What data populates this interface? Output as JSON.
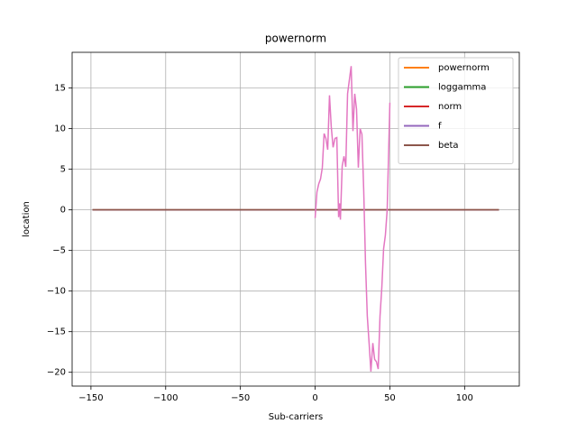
{
  "chart_data": {
    "type": "line",
    "title": "powernorm",
    "xlabel": "Sub-carriers",
    "ylabel": "location",
    "xlim": [
      -162.6,
      136.6
    ],
    "ylim": [
      -21.7,
      19.4
    ],
    "xticks": [
      {
        "value": -150,
        "label": "−150"
      },
      {
        "value": -100,
        "label": "−100"
      },
      {
        "value": -50,
        "label": "−50"
      },
      0,
      50,
      100
    ],
    "yticks": [
      {
        "value": -20,
        "label": "−20"
      },
      {
        "value": -15,
        "label": "−15"
      },
      {
        "value": -10,
        "label": "−10"
      },
      {
        "value": -5,
        "label": "−5"
      },
      0,
      5,
      10,
      15
    ],
    "grid": true,
    "legend": "upper right",
    "series": [
      {
        "name": "powernorm",
        "color": "#ff7f0e",
        "x": [
          -149,
          123
        ],
        "values": [
          0,
          0
        ]
      },
      {
        "name": "loggamma",
        "color": "#2ca02c",
        "x": [
          -149,
          123
        ],
        "values": [
          0,
          0
        ]
      },
      {
        "name": "norm",
        "color": "#d62728",
        "x": [
          -149,
          123
        ],
        "values": [
          0,
          0
        ]
      },
      {
        "name": "f",
        "color": "#9467bd",
        "x": [
          -149,
          123
        ],
        "values": [
          0,
          0
        ]
      },
      {
        "name": "beta",
        "color": "#8c564b",
        "x": [
          -149,
          123
        ],
        "values": [
          0,
          0
        ]
      },
      {
        "color": "#e377c2",
        "x": [
          0,
          1.2,
          2.4,
          3.6,
          4.8,
          6,
          7.2,
          8.4,
          9.6,
          10.8,
          12,
          13.3,
          14.5,
          15.7,
          16.3,
          16.9,
          18.1,
          19.3,
          20.5,
          21.7,
          22.9,
          24.1,
          25.3,
          26.5,
          27.7,
          28.9,
          30.1,
          31.3,
          32.5,
          33.7,
          34.9,
          36.1,
          37.3,
          38.6,
          39.8,
          41,
          42.2,
          43.4,
          44.6,
          45.8,
          47,
          48.2,
          50
        ],
        "values": [
          -1,
          2.2,
          3.2,
          3.8,
          5.2,
          9.4,
          8.8,
          7.4,
          14.1,
          10.2,
          7.7,
          8.8,
          8.9,
          -0.9,
          0.8,
          -1.2,
          5.4,
          6.6,
          5.3,
          14.3,
          16,
          17.7,
          9.7,
          14.3,
          12.4,
          5.2,
          10,
          9.3,
          2.4,
          -6.6,
          -13.1,
          -16.4,
          -19.9,
          -16.4,
          -18.4,
          -18.7,
          -19.6,
          -13.1,
          -9.6,
          -4.8,
          -3.1,
          0,
          13.2
        ]
      }
    ]
  }
}
